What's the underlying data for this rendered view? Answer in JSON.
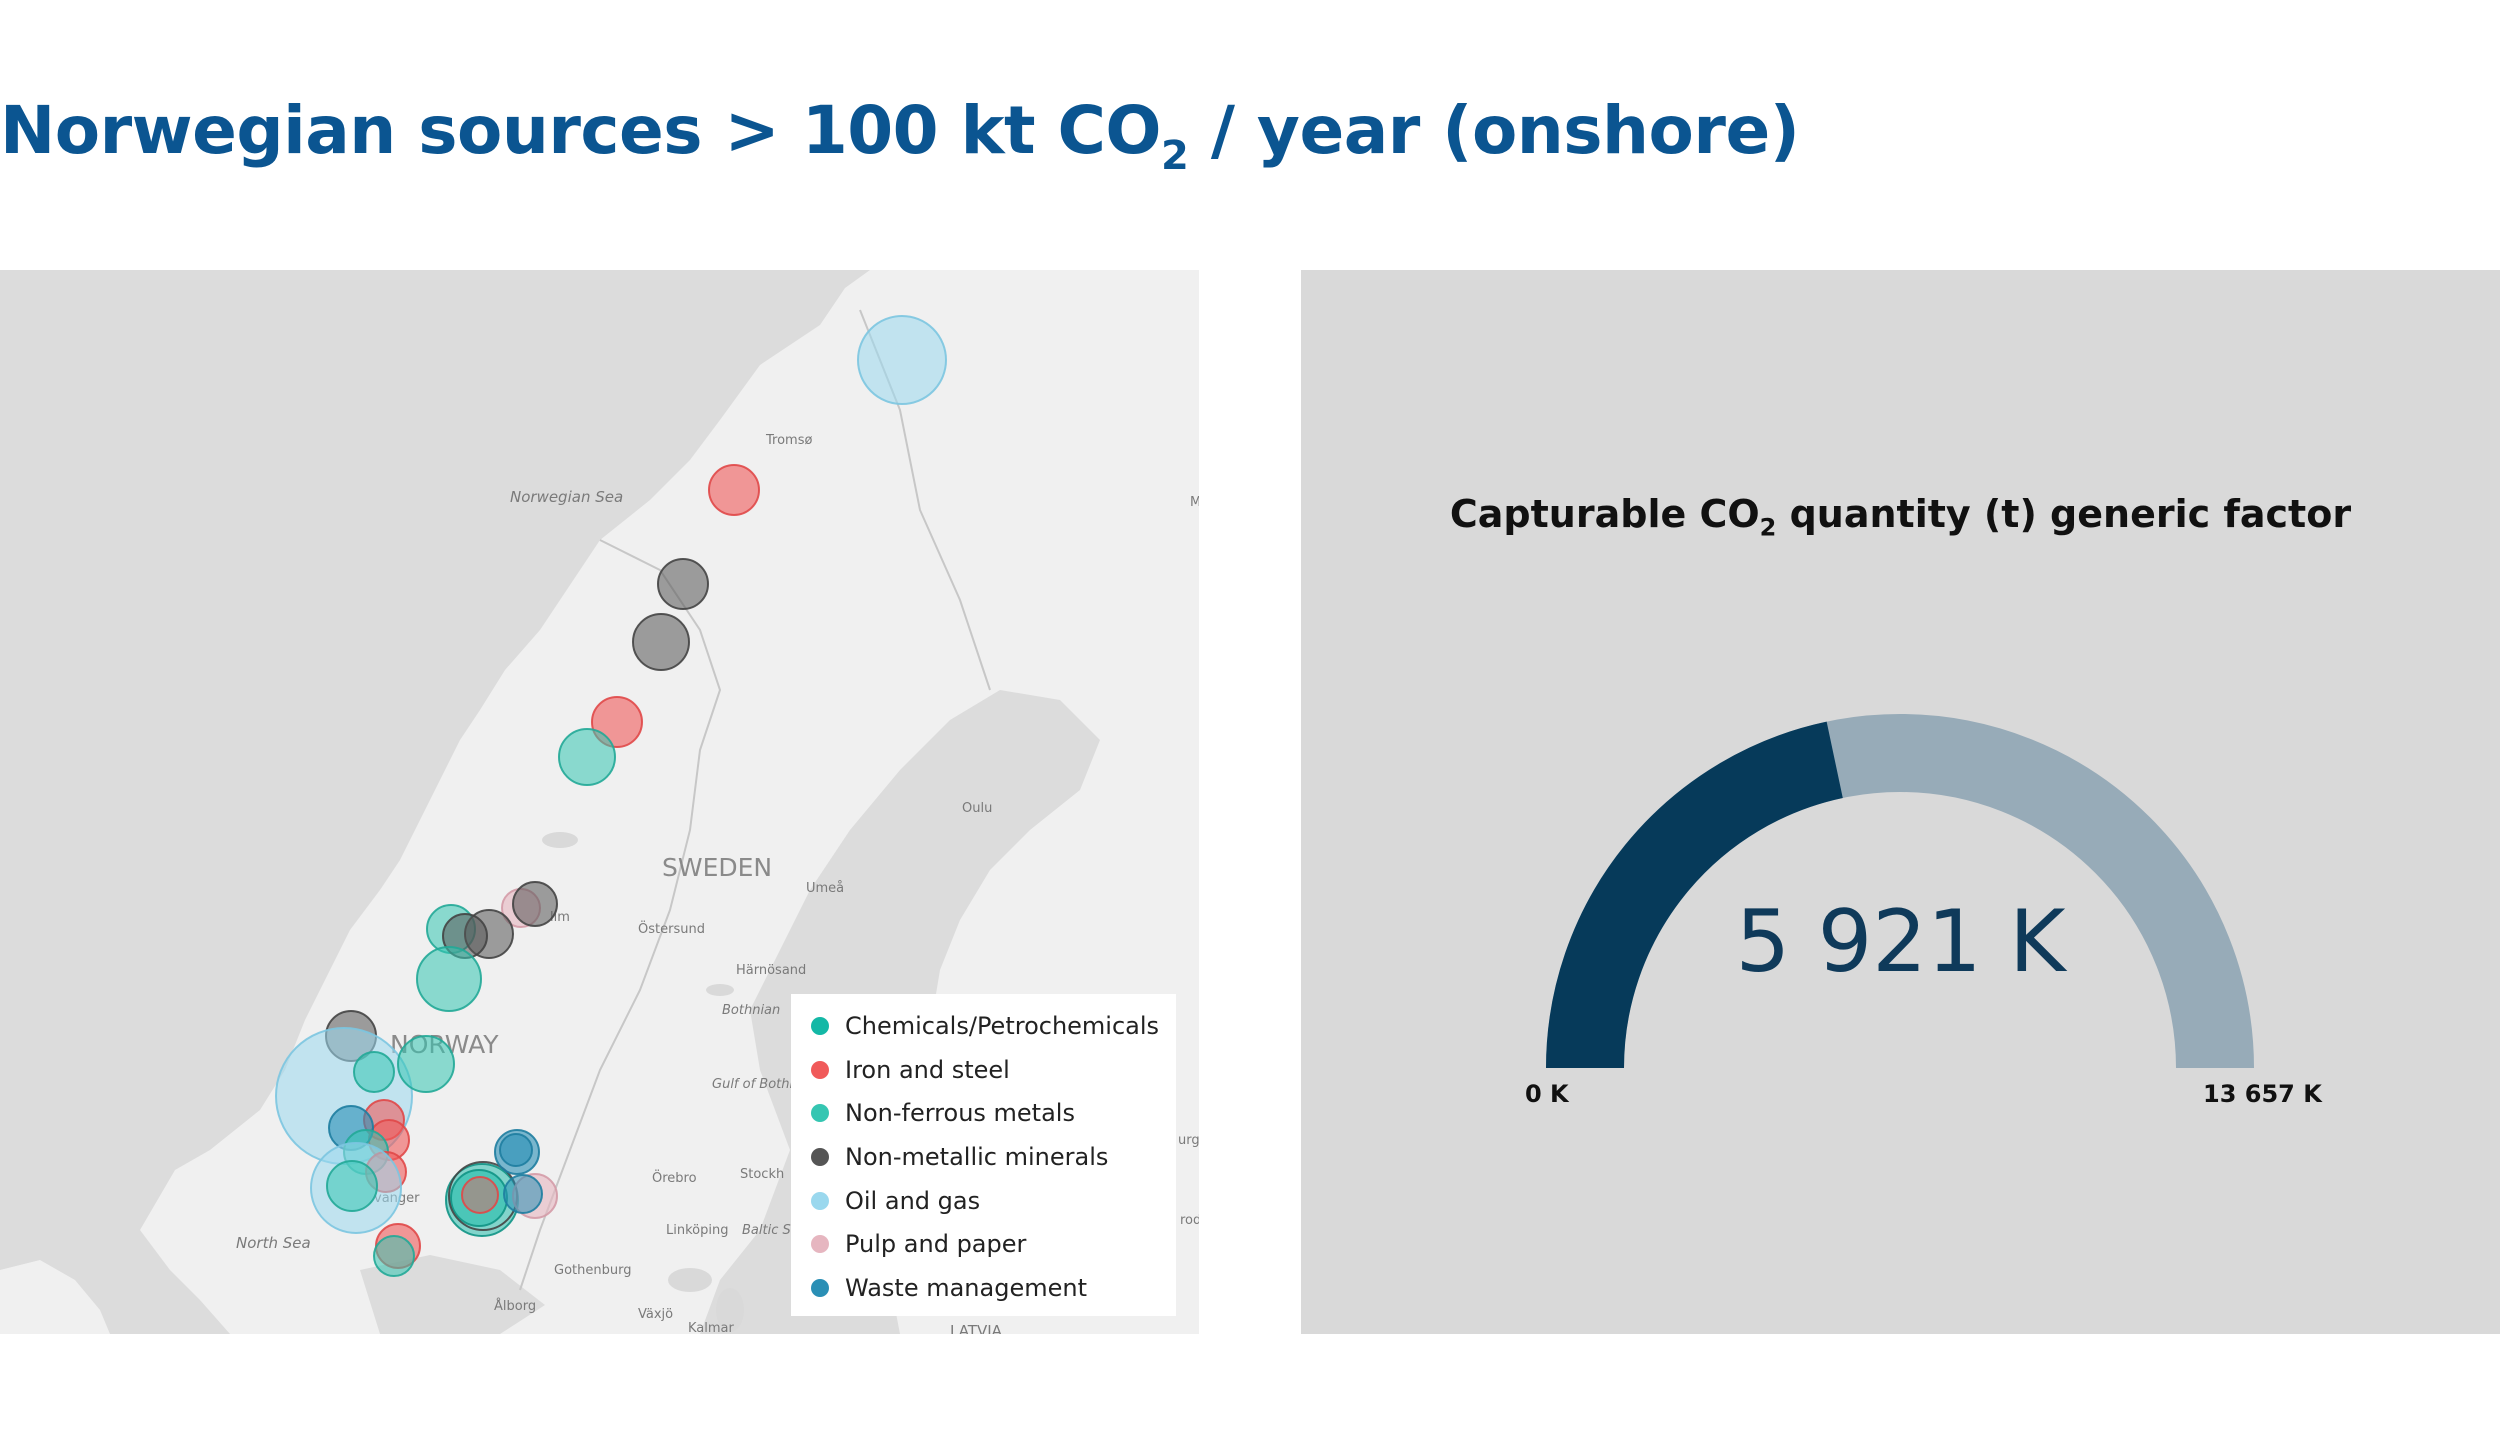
{
  "header": {
    "title_before": "Norwegian sources > 100 kt CO",
    "title_sub": "2",
    "title_after": " / year (onshore)"
  },
  "map": {
    "place_labels": [
      "Norwegian Sea",
      "Tromsø",
      "SWEDEN",
      "NORWAY",
      "Oulu",
      "Umeå",
      "Östersund",
      "Härnösand",
      "Bothnian",
      "Gulf of Bothn",
      "Örebro",
      "Stockh",
      "Linköping",
      "Baltic S",
      "North Sea",
      "Gothenburg",
      "Ålborg",
      "Växjö",
      "Kalmar",
      "LATVIA",
      "lim",
      "vanger",
      "M",
      "urg",
      "rod"
    ],
    "colors": {
      "land": "#f0f0f0",
      "sea": "#dcdcdc",
      "lakes": "#d9d9d9",
      "borders": "#c7c7c7"
    },
    "legend": [
      {
        "label": "Chemicals/Petrochemicals",
        "color": "#14b8a6"
      },
      {
        "label": "Iron and steel",
        "color": "#f05a5a"
      },
      {
        "label": "Non-ferrous metals",
        "color": "#35c6b2"
      },
      {
        "label": "Non-metallic minerals",
        "color": "#555555"
      },
      {
        "label": "Oil and gas",
        "color": "#9ad8ee"
      },
      {
        "label": "Pulp and paper",
        "color": "#e6b6c0"
      },
      {
        "label": "Waste management",
        "color": "#2a8fb5"
      }
    ]
  },
  "gauge": {
    "title_before": "Capturable CO",
    "title_sub": "2",
    "title_after": " quantity (t) generic factor",
    "value_text": "5 921 K",
    "value": 5921,
    "min": 0,
    "max": 13657,
    "min_label": "0 K",
    "max_label": "13 657 K",
    "colors": {
      "fill": "#063a5a",
      "track": "#97abb8"
    }
  }
}
